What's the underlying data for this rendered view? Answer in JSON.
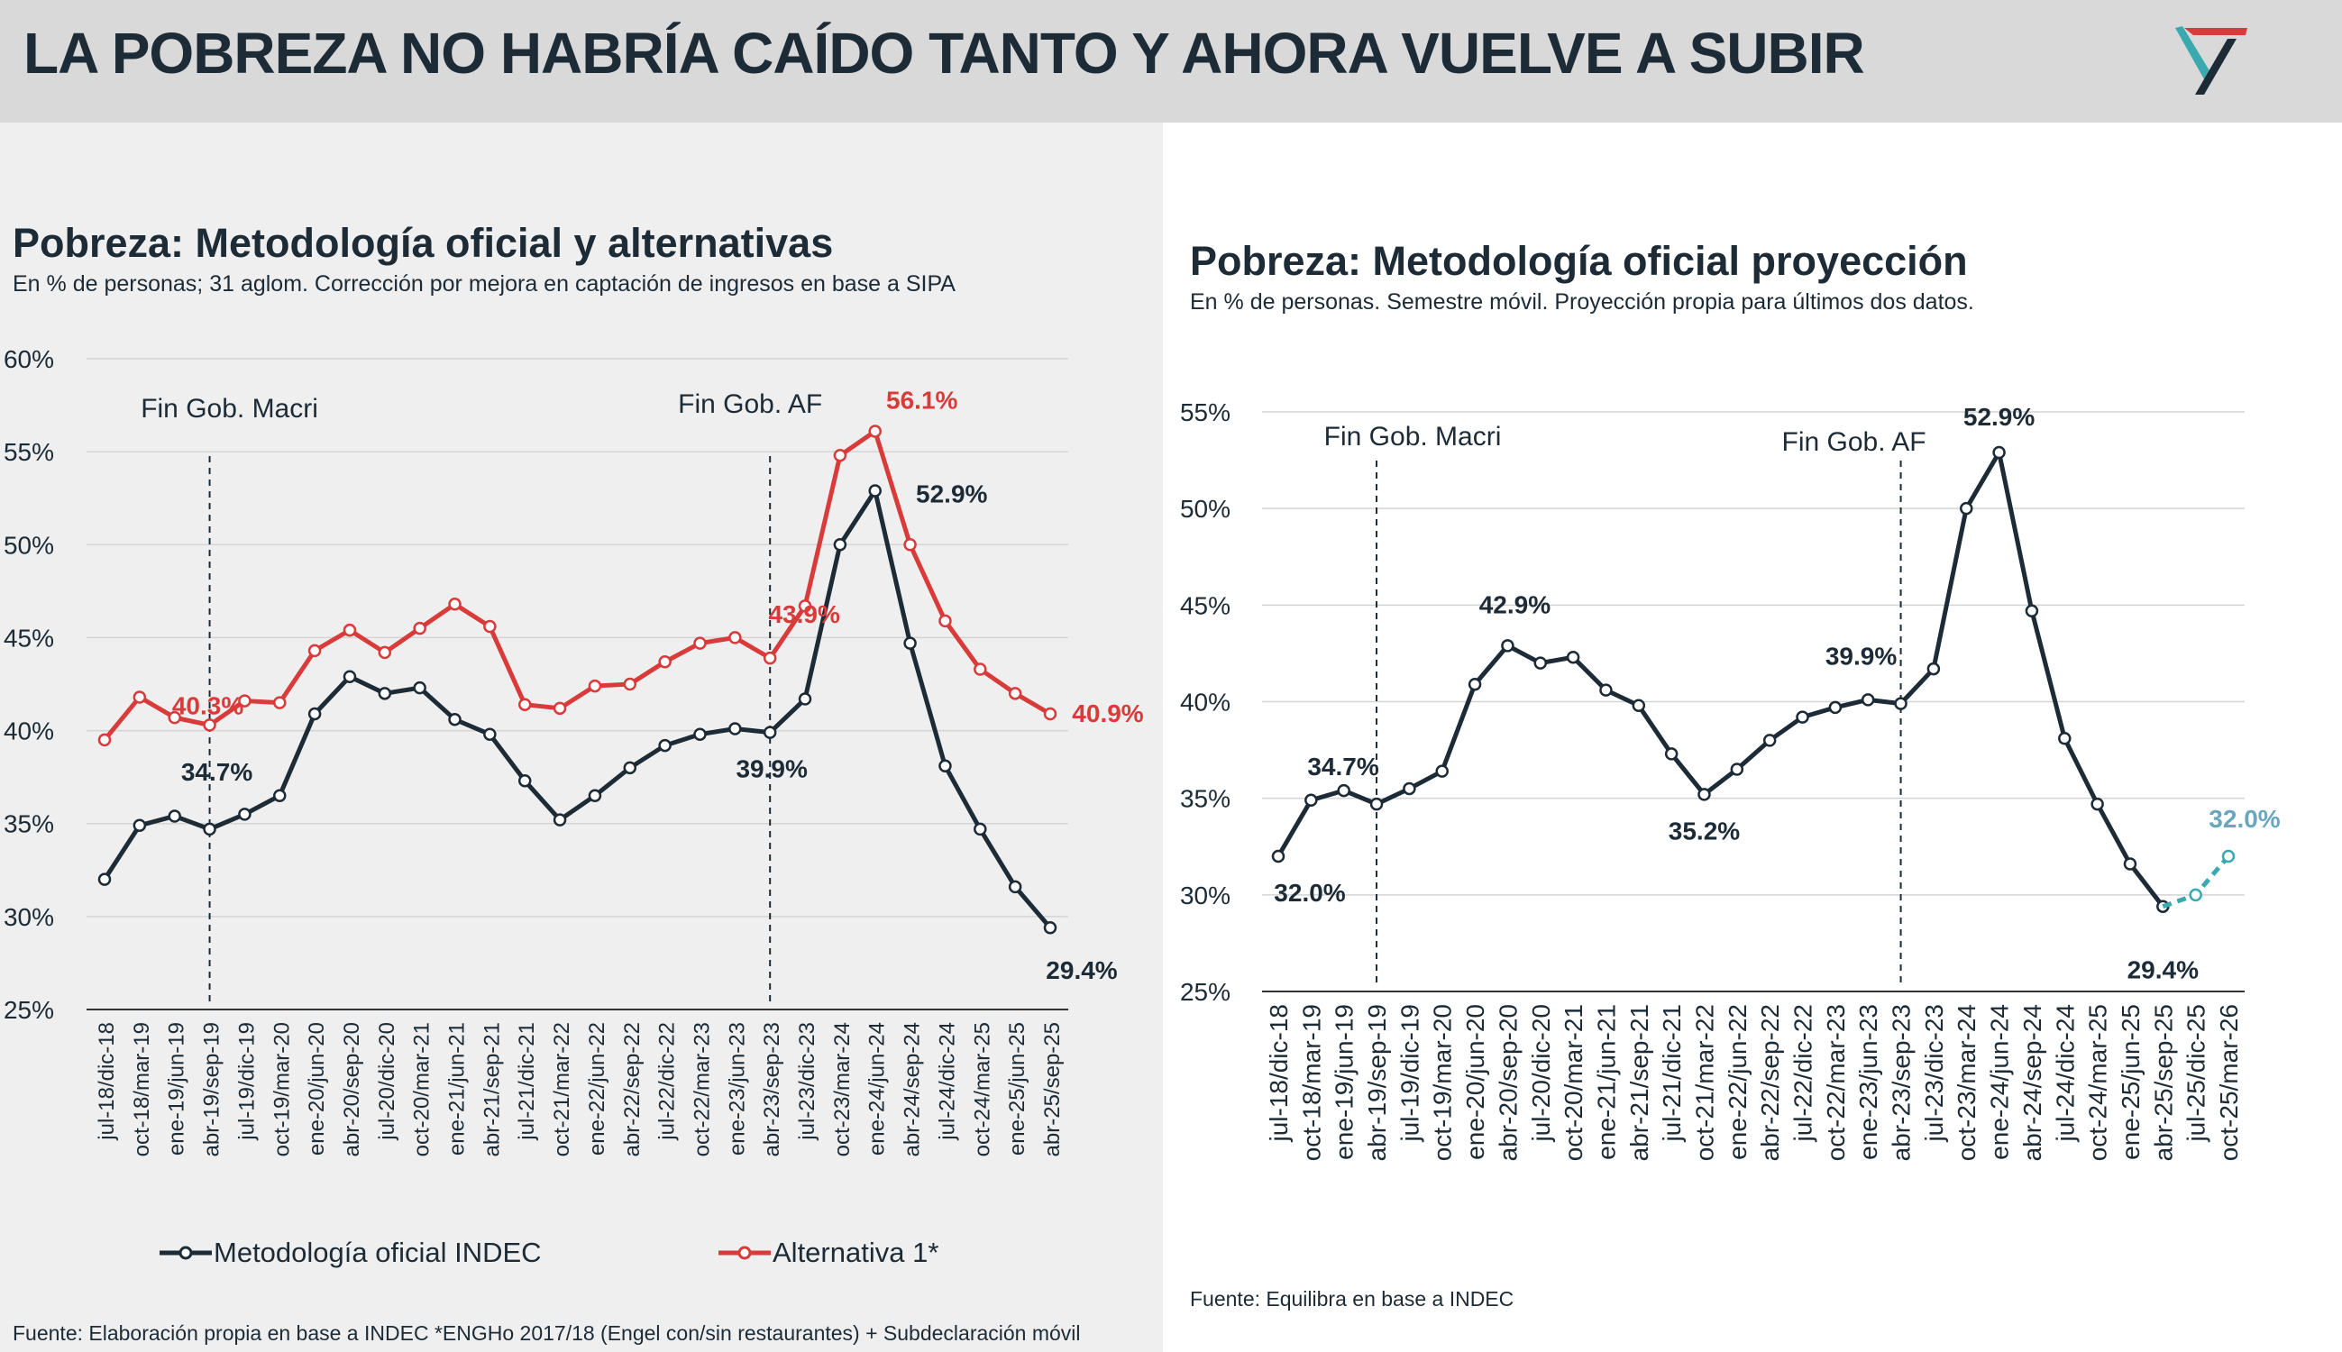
{
  "header": {
    "title": "LA POBREZA NO HABRÍA CAÍDO TANTO Y AHORA VUELVE A SUBIR",
    "logo_icon": "triangle-v-logo"
  },
  "colors": {
    "official": "#1c2b36",
    "alternative": "#d93a3a",
    "projection": "#3aa9b0",
    "projection_label": "#6aa6bd"
  },
  "chart_data": [
    {
      "type": "line",
      "title": "Pobreza: Metodología oficial y alternativas",
      "subtitle": "En % de personas; 31 aglom. Corrección por mejora en captación de ingresos en base a SIPA",
      "ylim": [
        25,
        60
      ],
      "yticks": [
        "25%",
        "30%",
        "35%",
        "40%",
        "45%",
        "50%",
        "55%",
        "60%"
      ],
      "grid": true,
      "legend_placement": "bottom",
      "categories": [
        "jul-18/dic-18",
        "oct-18/mar-19",
        "ene-19/jun-19",
        "abr-19/sep-19",
        "jul-19/dic-19",
        "oct-19/mar-20",
        "ene-20/jun-20",
        "abr-20/sep-20",
        "jul-20/dic-20",
        "oct-20/mar-21",
        "ene-21/jun-21",
        "abr-21/sep-21",
        "jul-21/dic-21",
        "oct-21/mar-22",
        "ene-22/jun-22",
        "abr-22/sep-22",
        "jul-22/dic-22",
        "oct-22/mar-23",
        "ene-23/jun-23",
        "abr-23/sep-23",
        "jul-23/dic-23",
        "oct-23/mar-24",
        "ene-24/jun-24",
        "abr-24/sep-24",
        "jul-24/dic-24",
        "oct-24/mar-25",
        "ene-25/jun-25",
        "abr-25/sep-25"
      ],
      "series": [
        {
          "name": "Metodología oficial INDEC",
          "color": "#1c2b36",
          "values": [
            32.0,
            34.9,
            35.4,
            34.7,
            35.5,
            36.5,
            40.9,
            42.9,
            42.0,
            42.3,
            40.6,
            39.8,
            37.3,
            35.2,
            36.5,
            38.0,
            39.2,
            39.8,
            40.1,
            39.9,
            41.7,
            50.0,
            52.9,
            44.7,
            38.1,
            34.7,
            31.6,
            29.4
          ]
        },
        {
          "name": "Alternativa 1*",
          "color": "#d93a3a",
          "values": [
            39.5,
            41.8,
            40.7,
            40.3,
            41.6,
            41.5,
            44.3,
            45.4,
            44.2,
            45.5,
            46.8,
            45.6,
            41.4,
            41.2,
            42.4,
            42.5,
            43.7,
            44.7,
            45.0,
            43.9,
            46.7,
            54.8,
            56.1,
            50.0,
            45.9,
            43.3,
            42.0,
            40.9
          ]
        }
      ],
      "annotations": [
        {
          "index": 3,
          "text": "Fin Gob. Macri"
        },
        {
          "index": 19,
          "text": "Fin Gob. AF"
        }
      ],
      "data_labels": [
        {
          "series": 1,
          "index": 3,
          "text": "40.3%"
        },
        {
          "series": 0,
          "index": 3,
          "text": "34.7%"
        },
        {
          "series": 1,
          "index": 19,
          "text": "43.9%"
        },
        {
          "series": 0,
          "index": 19,
          "text": "39.9%"
        },
        {
          "series": 1,
          "index": 22,
          "text": "56.1%"
        },
        {
          "series": 0,
          "index": 22,
          "text": "52.9%"
        },
        {
          "series": 1,
          "index": 27,
          "text": "40.9%"
        },
        {
          "series": 0,
          "index": 27,
          "text": "29.4%"
        }
      ],
      "source": "Fuente: Elaboración propia en base a INDEC *ENGHo 2017/18 (Engel con/sin restaurantes) + Subdeclaración móvil"
    },
    {
      "type": "line",
      "title": "Pobreza: Metodología oficial proyección",
      "subtitle": "En % de personas. Semestre móvil. Proyección propia para últimos dos datos.",
      "ylim": [
        25,
        55
      ],
      "yticks": [
        "25%",
        "30%",
        "35%",
        "40%",
        "45%",
        "50%",
        "55%"
      ],
      "grid": true,
      "categories": [
        "jul-18/dic-18",
        "oct-18/mar-19",
        "ene-19/jun-19",
        "abr-19/sep-19",
        "jul-19/dic-19",
        "oct-19/mar-20",
        "ene-20/jun-20",
        "abr-20/sep-20",
        "jul-20/dic-20",
        "oct-20/mar-21",
        "ene-21/jun-21",
        "abr-21/sep-21",
        "jul-21/dic-21",
        "oct-21/mar-22",
        "ene-22/jun-22",
        "abr-22/sep-22",
        "jul-22/dic-22",
        "oct-22/mar-23",
        "ene-23/jun-23",
        "abr-23/sep-23",
        "jul-23/dic-23",
        "oct-23/mar-24",
        "ene-24/jun-24",
        "abr-24/sep-24",
        "jul-24/dic-24",
        "oct-24/mar-25",
        "ene-25/jun-25",
        "abr-25/sep-25",
        "jul-25/dic-25",
        "oct-25/mar-26"
      ],
      "series": [
        {
          "color": "#1c2b36",
          "values": [
            32.0,
            34.9,
            35.4,
            34.7,
            35.5,
            36.4,
            40.9,
            42.9,
            42.0,
            42.3,
            40.6,
            39.8,
            37.3,
            35.2,
            36.5,
            38.0,
            39.2,
            39.7,
            40.1,
            39.9,
            41.7,
            50.0,
            52.9,
            44.7,
            38.1,
            34.7,
            31.6,
            29.4,
            null,
            null
          ]
        },
        {
          "color": "#3aa9b0",
          "dashed": true,
          "values": [
            null,
            null,
            null,
            null,
            null,
            null,
            null,
            null,
            null,
            null,
            null,
            null,
            null,
            null,
            null,
            null,
            null,
            null,
            null,
            null,
            null,
            null,
            null,
            null,
            null,
            null,
            null,
            29.4,
            30.0,
            32.0
          ]
        }
      ],
      "annotations": [
        {
          "index": 3,
          "text": "Fin Gob. Macri"
        },
        {
          "index": 19,
          "text": "Fin Gob. AF"
        }
      ],
      "data_labels": [
        {
          "series": 0,
          "index": 3,
          "text": "34.7%"
        },
        {
          "series": 0,
          "index": 0,
          "text": "32.0%"
        },
        {
          "series": 0,
          "index": 7,
          "text": "42.9%"
        },
        {
          "series": 0,
          "index": 13,
          "text": "35.2%"
        },
        {
          "series": 0,
          "index": 19,
          "text": "39.9%"
        },
        {
          "series": 0,
          "index": 22,
          "text": "52.9%"
        },
        {
          "series": 0,
          "index": 27,
          "text": "29.4%"
        },
        {
          "series": 1,
          "index": 29,
          "text": "32.0%"
        }
      ],
      "source": "Fuente: Equilibra en base a INDEC"
    }
  ]
}
